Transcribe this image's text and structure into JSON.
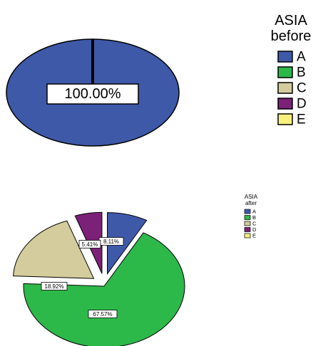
{
  "colors": {
    "A": "#3f59a9",
    "B": "#2db84a",
    "C": "#d4cc9c",
    "D": "#7b2178",
    "E": "#f7f17c"
  },
  "chart_data": [
    {
      "type": "pie",
      "title": "ASIA",
      "subtitle": "before",
      "categories": [
        "A",
        "B",
        "C",
        "D",
        "E"
      ],
      "values": [
        100.0,
        0,
        0,
        0,
        0
      ],
      "labels": [
        "100.00%"
      ],
      "legend": "right"
    },
    {
      "type": "pie",
      "title": "ASIA",
      "subtitle": "after",
      "categories": [
        "A",
        "B",
        "C",
        "D",
        "E"
      ],
      "values": [
        8.11,
        67.57,
        18.92,
        5.41,
        0
      ],
      "labels": [
        "8.11%",
        "67.57%",
        "18.92%",
        "5.41%"
      ],
      "exploded": true,
      "legend": "right"
    }
  ]
}
